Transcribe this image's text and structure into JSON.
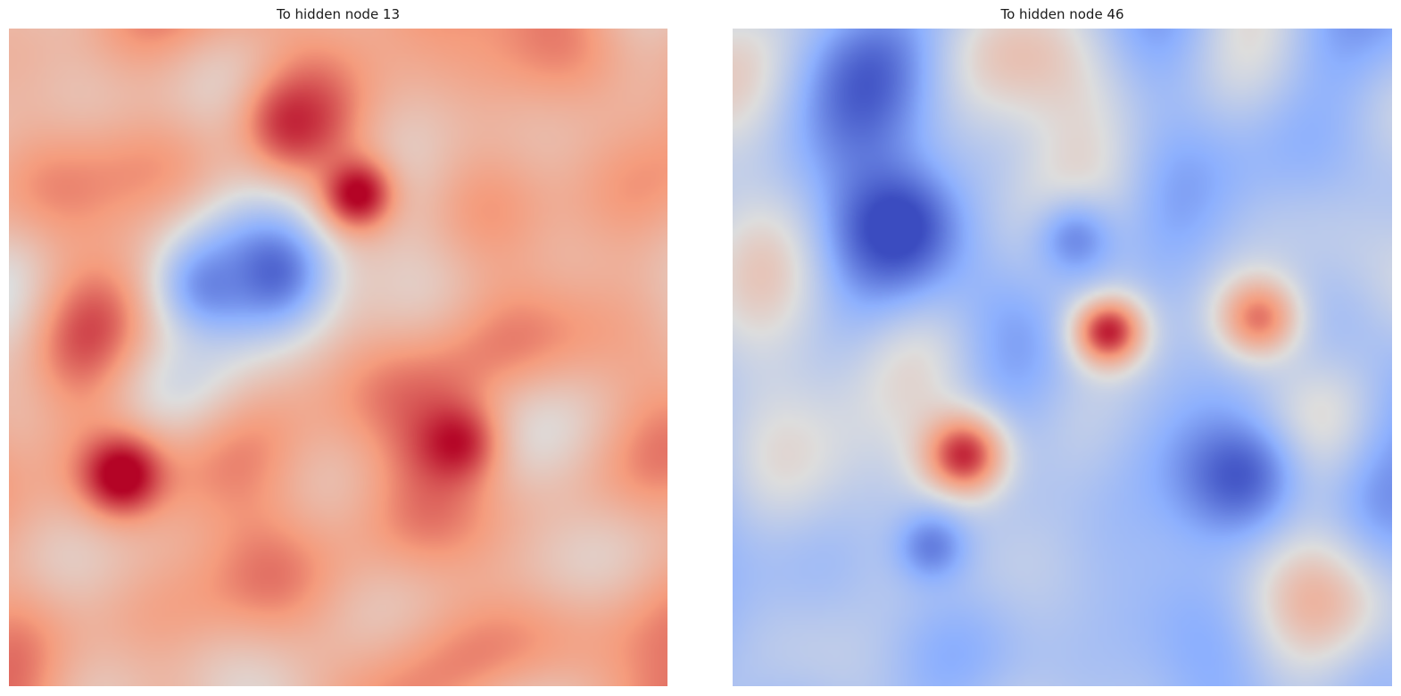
{
  "chart_data": [
    {
      "type": "heatmap",
      "title": "To hidden node 13",
      "colormap": "coolwarm",
      "interpolation": "smooth",
      "axes": "off",
      "grid": false,
      "dominant_sign": "positive",
      "features": [
        {
          "kind": "negative-blob",
          "u": 0.4,
          "v": 0.37,
          "strength": -0.95,
          "spread": 0.07
        },
        {
          "kind": "negative-blob",
          "u": 0.3,
          "v": 0.39,
          "strength": -0.7,
          "spread": 0.06
        },
        {
          "kind": "positive-blob",
          "u": 0.53,
          "v": 0.25,
          "strength": 1.0,
          "spread": 0.04
        },
        {
          "kind": "positive-blob",
          "u": 0.17,
          "v": 0.68,
          "strength": 1.0,
          "spread": 0.04
        },
        {
          "kind": "positive-blob",
          "u": 0.68,
          "v": 0.63,
          "strength": 0.9,
          "spread": 0.05
        },
        {
          "kind": "positive-blob",
          "u": 0.43,
          "v": 0.14,
          "strength": 0.75,
          "spread": 0.05
        }
      ]
    },
    {
      "type": "heatmap",
      "title": "To hidden node 46",
      "colormap": "coolwarm",
      "interpolation": "smooth",
      "axes": "off",
      "grid": false,
      "dominant_sign": "negative",
      "features": [
        {
          "kind": "positive-blob",
          "u": 0.57,
          "v": 0.46,
          "strength": 1.0,
          "spread": 0.04
        },
        {
          "kind": "positive-blob",
          "u": 0.35,
          "v": 0.65,
          "strength": 1.0,
          "spread": 0.05
        },
        {
          "kind": "positive-blob",
          "u": 0.8,
          "v": 0.44,
          "strength": 0.75,
          "spread": 0.05
        },
        {
          "kind": "negative-blob",
          "u": 0.25,
          "v": 0.3,
          "strength": -0.95,
          "spread": 0.06
        },
        {
          "kind": "negative-blob",
          "u": 0.52,
          "v": 0.32,
          "strength": -0.7,
          "spread": 0.05
        },
        {
          "kind": "negative-blob",
          "u": 0.77,
          "v": 0.68,
          "strength": -0.9,
          "spread": 0.07
        },
        {
          "kind": "negative-blob",
          "u": 0.3,
          "v": 0.79,
          "strength": -0.7,
          "spread": 0.04
        }
      ]
    }
  ]
}
